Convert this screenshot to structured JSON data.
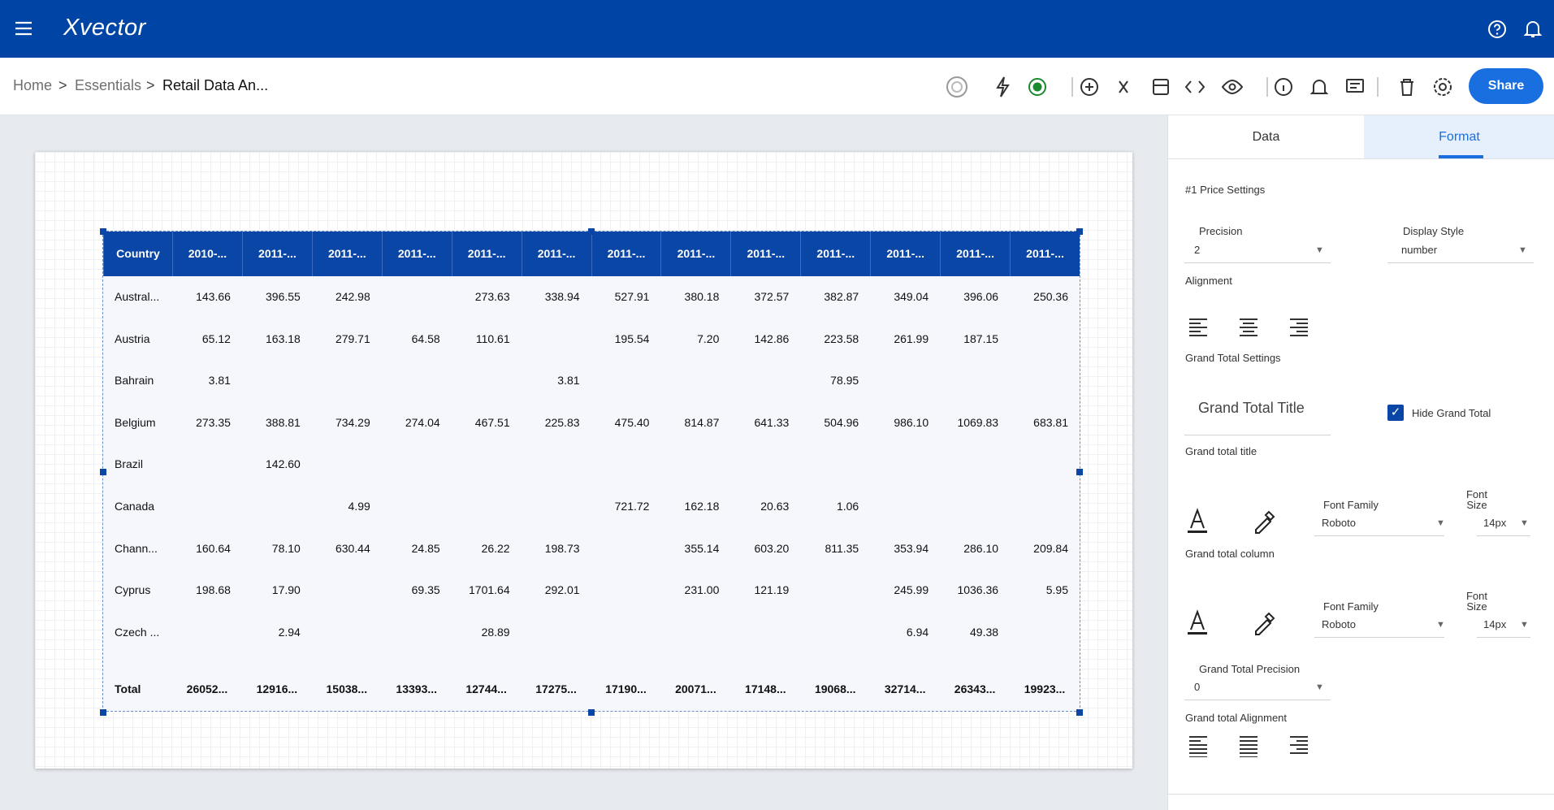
{
  "header": {
    "logo": "Xvector"
  },
  "breadcrumb": {
    "items": [
      "Home",
      "Essentials",
      "Retail Data An..."
    ],
    "separator": ">"
  },
  "toolbar": {
    "share": "Share"
  },
  "table": {
    "columns": [
      "Country",
      "2010-...",
      "2011-...",
      "2011-...",
      "2011-...",
      "2011-...",
      "2011-...",
      "2011-...",
      "2011-...",
      "2011-...",
      "2011-...",
      "2011-...",
      "2011-...",
      "2011-..."
    ],
    "rows": [
      [
        "Austral...",
        "143.66",
        "396.55",
        "242.98",
        null,
        "273.63",
        "338.94",
        "527.91",
        "380.18",
        "372.57",
        "382.87",
        "349.04",
        "396.06",
        "250.36"
      ],
      [
        "Austria",
        "65.12",
        "163.18",
        "279.71",
        "64.58",
        "110.61",
        null,
        "195.54",
        "7.20",
        "142.86",
        "223.58",
        "261.99",
        "187.15",
        null
      ],
      [
        "Bahrain",
        "3.81",
        null,
        null,
        null,
        null,
        "3.81",
        null,
        null,
        null,
        "78.95",
        null,
        null,
        null
      ],
      [
        "Belgium",
        "273.35",
        "388.81",
        "734.29",
        "274.04",
        "467.51",
        "225.83",
        "475.40",
        "814.87",
        "641.33",
        "504.96",
        "986.10",
        "1069.83",
        "683.81"
      ],
      [
        "Brazil",
        null,
        "142.60",
        null,
        null,
        null,
        null,
        null,
        null,
        null,
        null,
        null,
        null,
        null
      ],
      [
        "Canada",
        null,
        null,
        "4.99",
        null,
        null,
        null,
        "721.72",
        "162.18",
        "20.63",
        "1.06",
        null,
        null,
        null
      ],
      [
        "Chann...",
        "160.64",
        "78.10",
        "630.44",
        "24.85",
        "26.22",
        "198.73",
        null,
        "355.14",
        "603.20",
        "811.35",
        "353.94",
        "286.10",
        "209.84"
      ],
      [
        "Cyprus",
        "198.68",
        "17.90",
        null,
        "69.35",
        "1701.64",
        "292.01",
        null,
        "231.00",
        "121.19",
        null,
        "245.99",
        "1036.36",
        "5.95"
      ],
      [
        "Czech ...",
        null,
        "2.94",
        null,
        null,
        "28.89",
        null,
        null,
        null,
        null,
        null,
        "6.94",
        "49.38",
        null
      ]
    ],
    "total": [
      "Total",
      "26052...",
      "12916...",
      "15038...",
      "13393...",
      "12744...",
      "17275...",
      "17190...",
      "20071...",
      "17148...",
      "19068...",
      "32714...",
      "26343...",
      "19923..."
    ]
  },
  "panel": {
    "tabs": [
      "Data",
      "Format"
    ],
    "section": "#1 Price Settings",
    "precision": {
      "label": "Precision",
      "value": "2"
    },
    "display_style": {
      "label": "Display Style",
      "value": "number"
    },
    "alignment": "Alignment",
    "grand_total_settings": "Grand Total Settings",
    "grand_total_title_input": "Grand Total Title",
    "hide_grand_total": "Hide Grand Total",
    "grand_total_title": "Grand total title",
    "title_font": {
      "family_label": "Font Family",
      "family": "Roboto",
      "size_label": "Font Size",
      "size": "14px"
    },
    "grand_total_column": "Grand total column",
    "column_font": {
      "family_label": "Font Family",
      "family": "Roboto",
      "size_label": "Font Size",
      "size": "14px"
    },
    "grand_total_precision": {
      "label": "Grand Total Precision",
      "value": "0"
    },
    "grand_total_alignment": "Grand total Alignment"
  }
}
